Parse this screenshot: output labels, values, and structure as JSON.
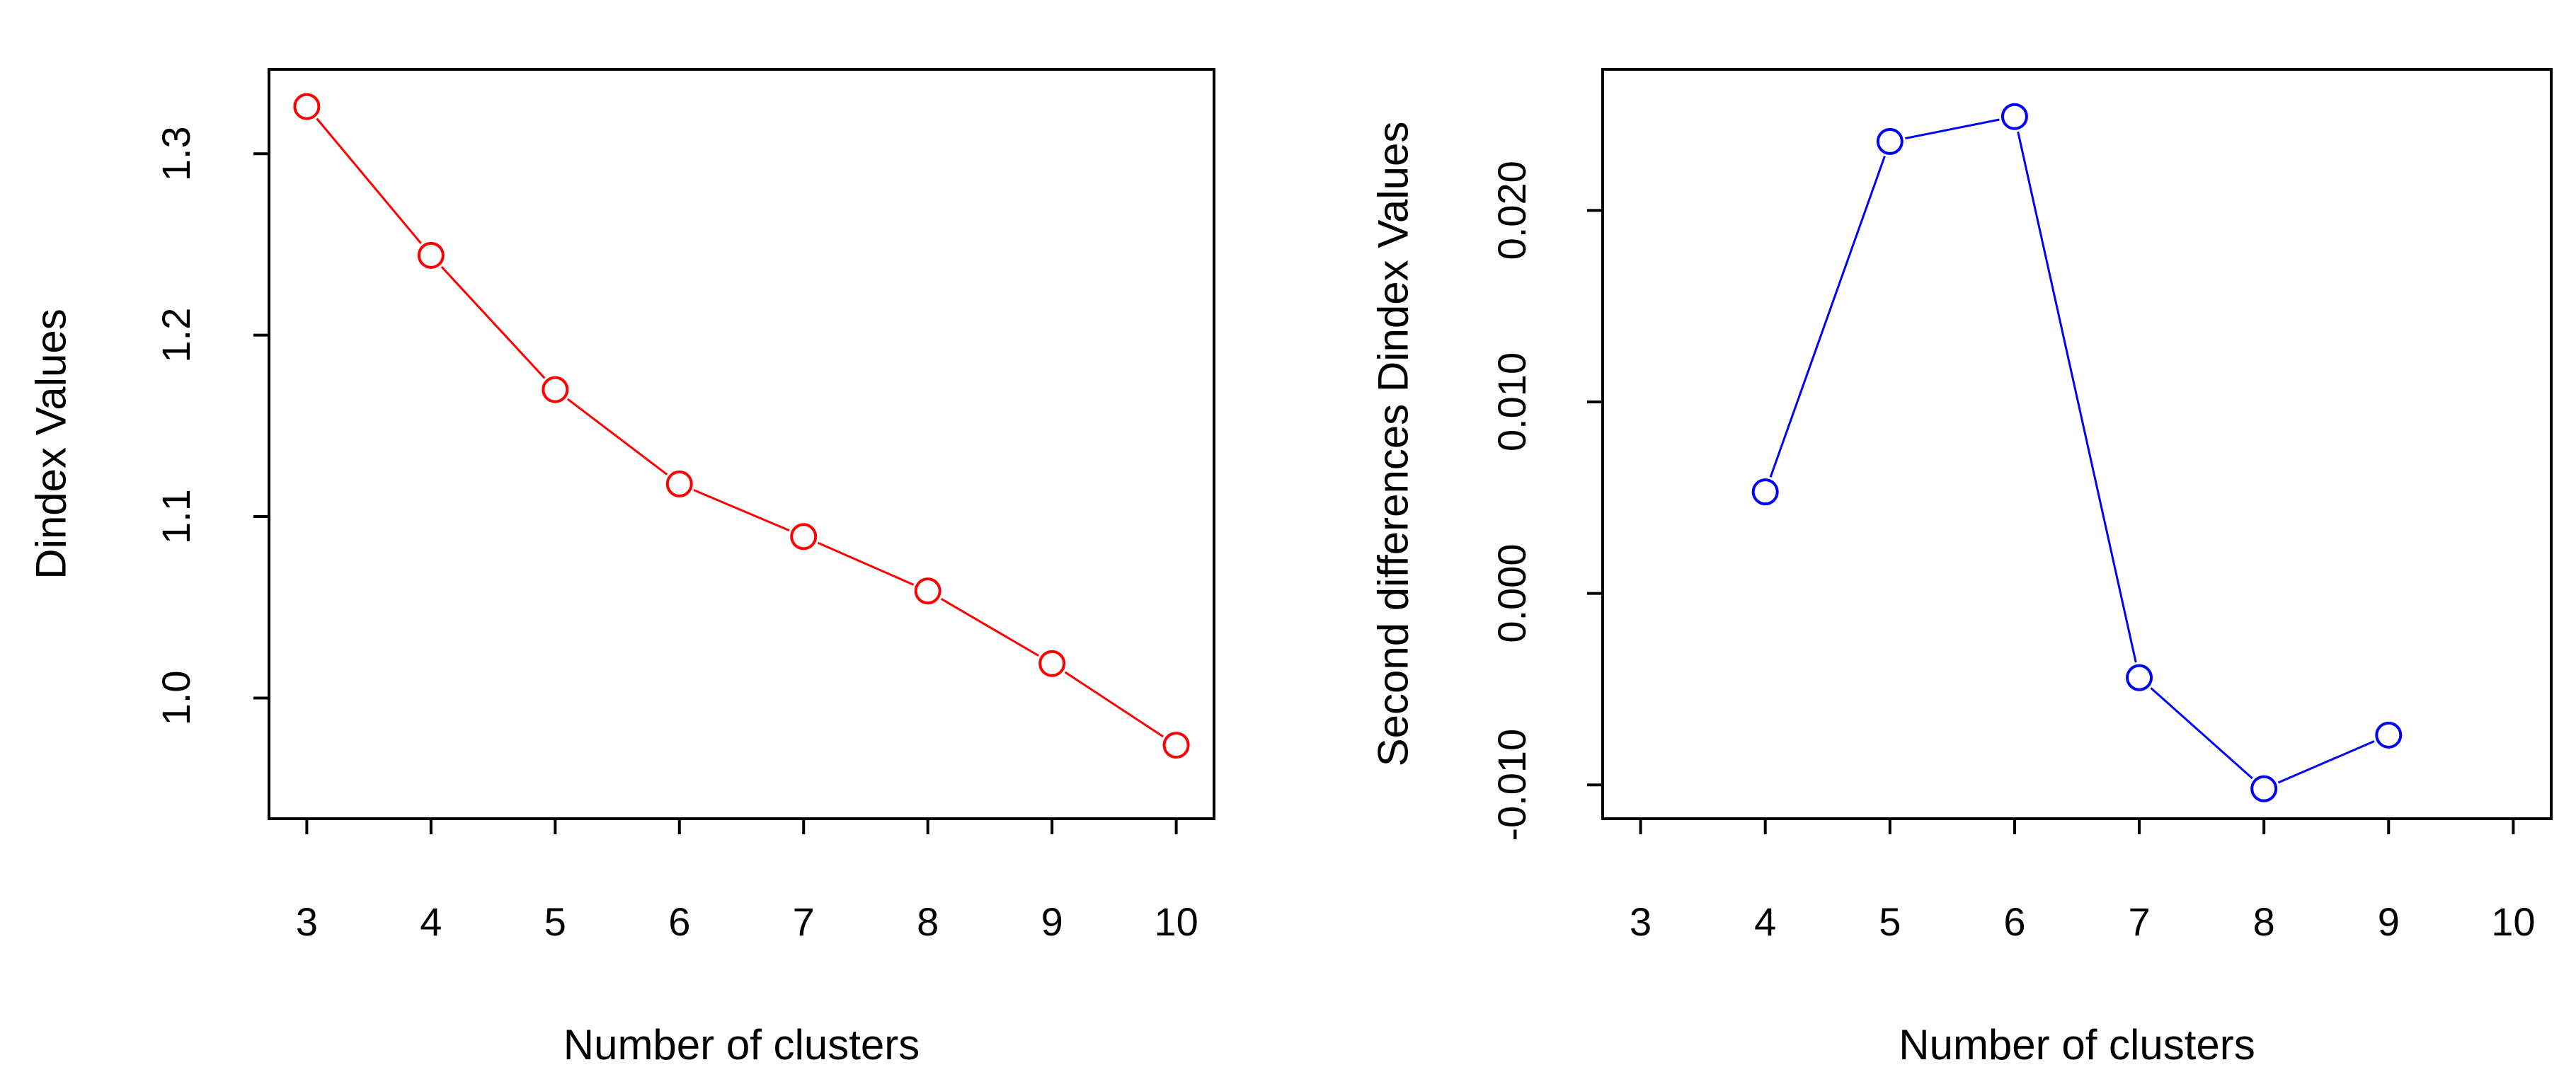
{
  "chart_data": [
    {
      "type": "line",
      "xlabel": "Number of clusters",
      "ylabel": "Dindex Values",
      "x": [
        3,
        4,
        5,
        6,
        7,
        8,
        9,
        10
      ],
      "x_ticks": [
        "3",
        "4",
        "5",
        "6",
        "7",
        "8",
        "9",
        "10"
      ],
      "y_ticks": [
        "1.0",
        "1.1",
        "1.2",
        "1.3"
      ],
      "xlim": [
        3,
        10
      ],
      "ylim": [
        0.95,
        1.33
      ],
      "grid": false,
      "marker": "open-circle",
      "series": [
        {
          "color": "#ff0000",
          "values": [
            1.326,
            1.244,
            1.17,
            1.118,
            1.089,
            1.059,
            1.019,
            0.974
          ]
        }
      ]
    },
    {
      "type": "line",
      "xlabel": "Number of clusters",
      "ylabel": "Second differences Dindex Values",
      "x": [
        3,
        4,
        5,
        6,
        7,
        8,
        9,
        10
      ],
      "x_ticks": [
        "3",
        "4",
        "5",
        "6",
        "7",
        "8",
        "9",
        "10"
      ],
      "y_ticks": [
        "-0.010",
        "0.000",
        "0.010",
        "0.020"
      ],
      "xlim": [
        3,
        10
      ],
      "ylim": [
        -0.0102,
        0.0258
      ],
      "grid": false,
      "marker": "open-circle",
      "series": [
        {
          "color": "#0000ff",
          "values": [
            null,
            0.0053,
            0.0236,
            0.0249,
            -0.0044,
            -0.0102,
            -0.0074,
            null
          ]
        }
      ]
    }
  ]
}
